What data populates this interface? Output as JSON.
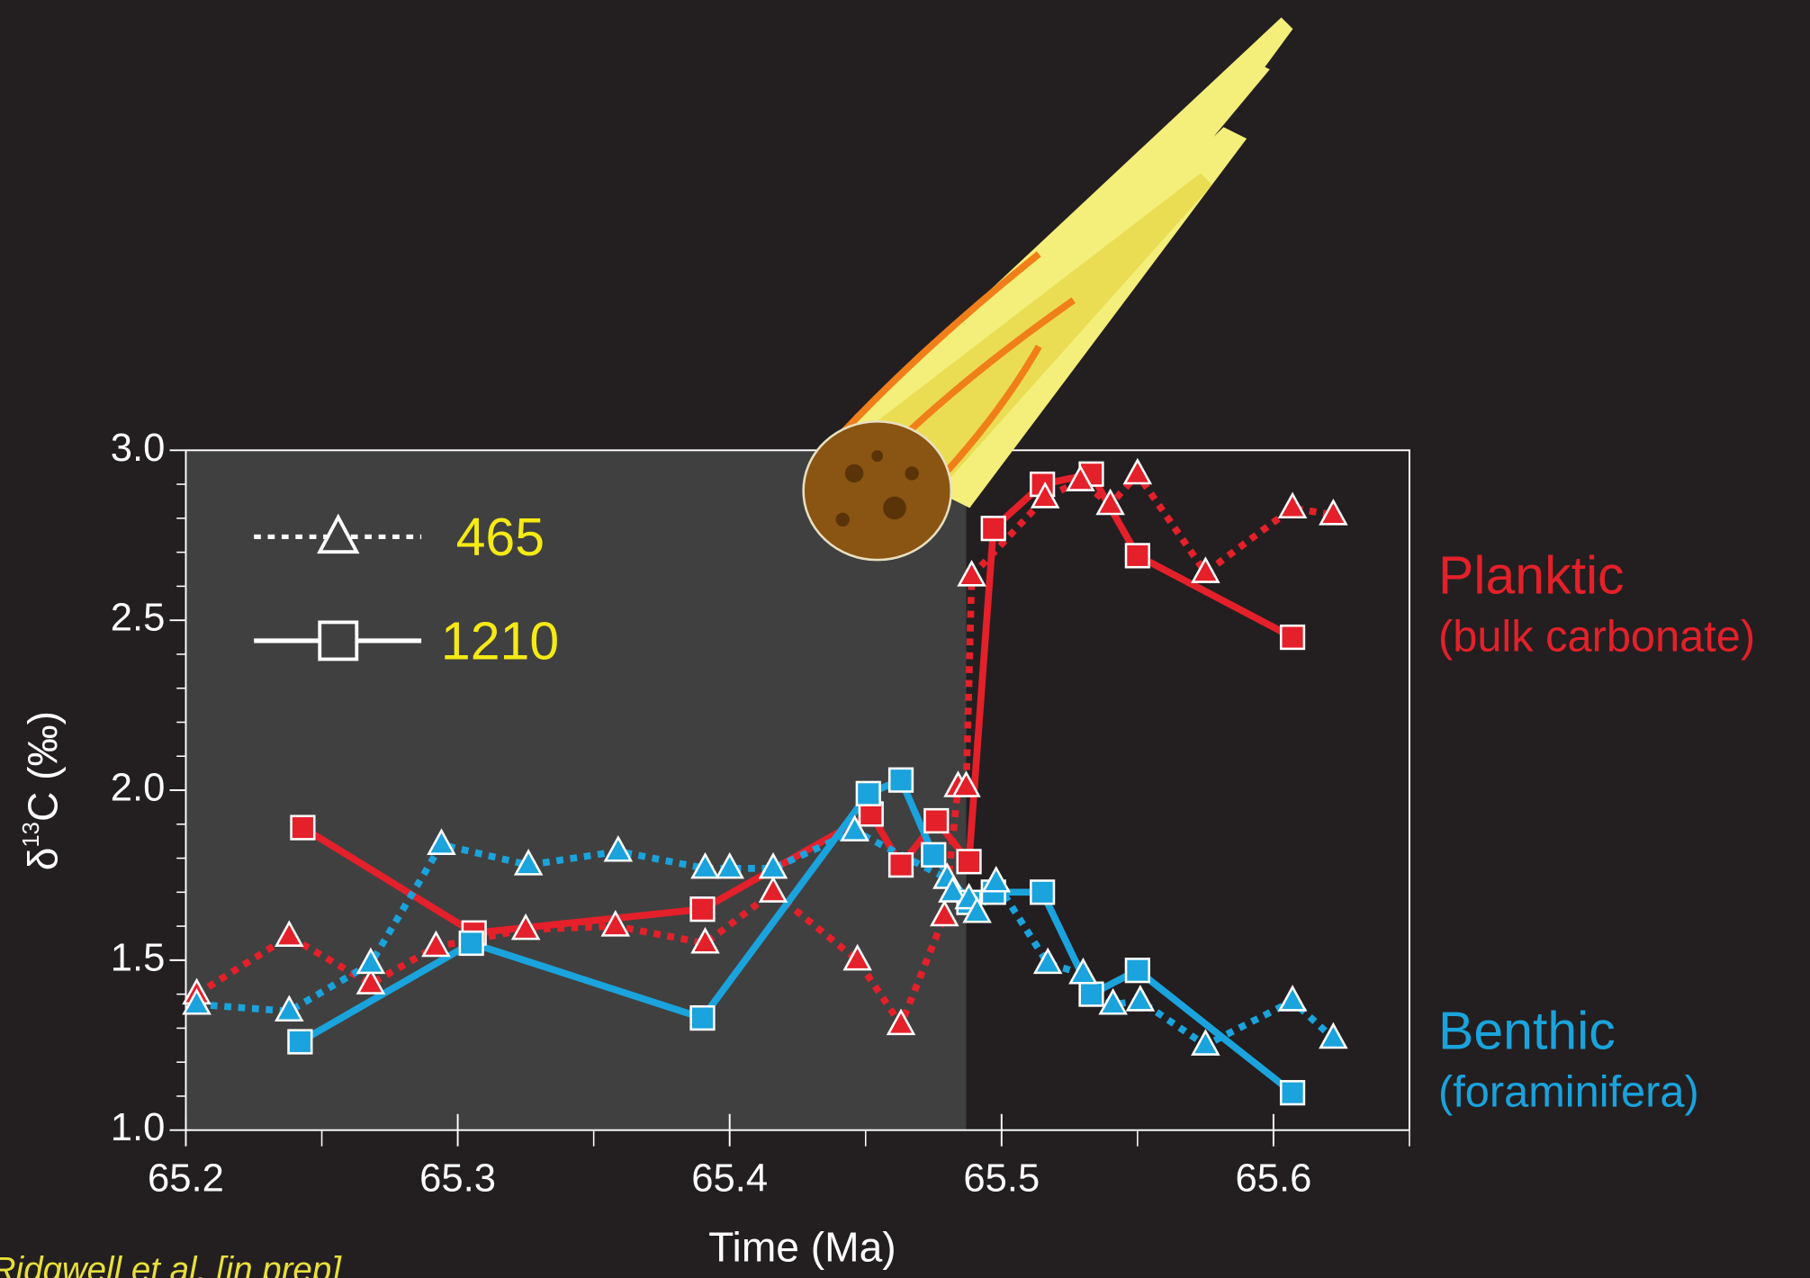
{
  "chart_data": {
    "type": "line",
    "xlabel": "Time (Ma)",
    "ylabel": {
      "symbol": "δ",
      "superscript": "13",
      "text": "C (‰)"
    },
    "source": "Ridgwell et al. [in prep]",
    "xlim": [
      65.2,
      65.65
    ],
    "ylim": [
      1.0,
      3.0
    ],
    "xticks": [
      65.2,
      65.3,
      65.4,
      65.5,
      65.6
    ],
    "xminor": [
      65.25,
      65.35,
      65.45,
      65.55,
      65.65
    ],
    "yticks": [
      {
        "value": 1,
        "label": "1.0"
      },
      1.5,
      {
        "value": 2,
        "label": "2.0"
      },
      2.5,
      {
        "value": 3,
        "label": "3.0"
      }
    ],
    "yminor": [
      1.1,
      1.2,
      1.3,
      1.4,
      1.6,
      1.7,
      1.8,
      1.9,
      2.1,
      2.2,
      2.3,
      2.4,
      2.6,
      2.7,
      2.8,
      2.9
    ],
    "shaded_span": [
      65.2,
      65.487
    ],
    "series": [
      {
        "name": "Planktic",
        "note": "(bulk carbonate)",
        "site": "1210",
        "color": "#e4202a",
        "dash": "solid",
        "marker": "square",
        "x": [
          65.243,
          65.306,
          65.39,
          65.452,
          65.463,
          65.476,
          65.488,
          65.497,
          65.515,
          65.533,
          65.55,
          65.607
        ],
        "values": [
          1.89,
          1.58,
          1.65,
          1.93,
          1.78,
          1.91,
          1.79,
          2.77,
          2.9,
          2.93,
          2.69,
          2.45
        ]
      },
      {
        "name": "Planktic",
        "note": "(bulk carbonate)",
        "site": "465",
        "color": "#e4202a",
        "dash": "dotted",
        "marker": "triangle",
        "x": [
          65.204,
          65.238,
          65.268,
          65.292,
          65.325,
          65.358,
          65.391,
          65.416,
          65.447,
          65.463,
          65.479,
          65.484,
          65.487,
          65.489,
          65.516,
          65.529,
          65.54,
          65.55,
          65.575,
          65.607,
          65.622
        ],
        "values": [
          1.4,
          1.57,
          1.43,
          1.54,
          1.59,
          1.6,
          1.55,
          1.7,
          1.5,
          1.31,
          1.63,
          2.01,
          2.01,
          2.63,
          2.86,
          2.91,
          2.84,
          2.93,
          2.64,
          2.83,
          2.81
        ]
      },
      {
        "name": "Benthic",
        "note": "(foraminifera)",
        "site": "1210",
        "color": "#1aa3dc",
        "dash": "solid",
        "marker": "square",
        "x": [
          65.242,
          65.305,
          65.39,
          65.451,
          65.463,
          65.475,
          65.488,
          65.497,
          65.515,
          65.533,
          65.55,
          65.607
        ],
        "values": [
          1.26,
          1.55,
          1.33,
          1.99,
          2.03,
          1.81,
          1.67,
          1.7,
          1.7,
          1.4,
          1.47,
          1.11
        ]
      },
      {
        "name": "Benthic",
        "note": "(foraminifera)",
        "site": "465",
        "color": "#1aa3dc",
        "dash": "dotted",
        "marker": "triangle",
        "x": [
          65.204,
          65.238,
          65.268,
          65.294,
          65.326,
          65.359,
          65.391,
          65.4,
          65.416,
          65.446,
          65.48,
          65.482,
          65.488,
          65.491,
          65.498,
          65.517,
          65.53,
          65.541,
          65.551,
          65.575,
          65.607,
          65.622
        ],
        "values": [
          1.37,
          1.35,
          1.49,
          1.84,
          1.78,
          1.82,
          1.77,
          1.77,
          1.77,
          1.88,
          1.74,
          1.7,
          1.68,
          1.64,
          1.73,
          1.49,
          1.46,
          1.37,
          1.38,
          1.25,
          1.38,
          1.27
        ]
      }
    ]
  }
}
